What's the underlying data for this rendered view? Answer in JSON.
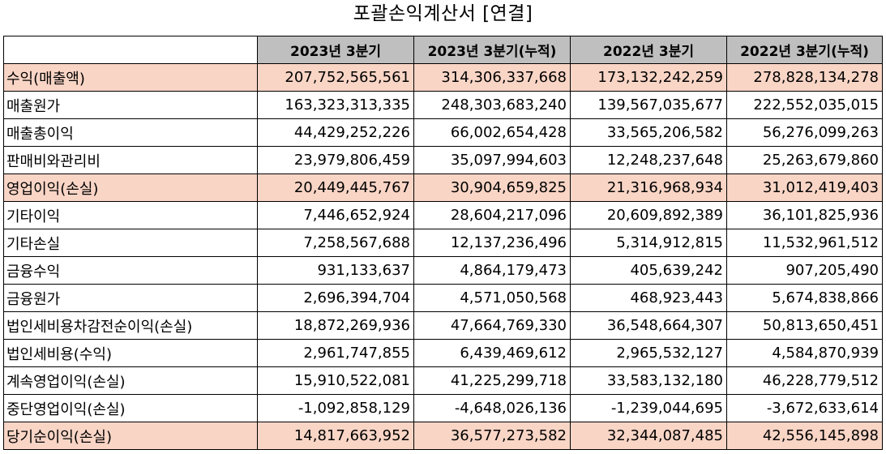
{
  "title": "포괄손익계산서 [연결]",
  "columns": [
    "2023년 3분기",
    "2023년 3분기(누적)",
    "2022년 3분기",
    "2022년 3분기(누적)"
  ],
  "highlight_color": "#f9d5c6",
  "header_color": "#bfbfbf",
  "rows": [
    {
      "label": "수익(매출액)",
      "values": [
        "207,752,565,561",
        "314,306,337,668",
        "173,132,242,259",
        "278,828,134,278"
      ],
      "highlight": true
    },
    {
      "label": "매출원가",
      "values": [
        "163,323,313,335",
        "248,303,683,240",
        "139,567,035,677",
        "222,552,035,015"
      ],
      "highlight": false
    },
    {
      "label": "매출총이익",
      "values": [
        "44,429,252,226",
        "66,002,654,428",
        "33,565,206,582",
        "56,276,099,263"
      ],
      "highlight": false
    },
    {
      "label": "판매비와관리비",
      "values": [
        "23,979,806,459",
        "35,097,994,603",
        "12,248,237,648",
        "25,263,679,860"
      ],
      "highlight": false
    },
    {
      "label": "영업이익(손실)",
      "values": [
        "20,449,445,767",
        "30,904,659,825",
        "21,316,968,934",
        "31,012,419,403"
      ],
      "highlight": true
    },
    {
      "label": "기타이익",
      "values": [
        "7,446,652,924",
        "28,604,217,096",
        "20,609,892,389",
        "36,101,825,936"
      ],
      "highlight": false
    },
    {
      "label": "기타손실",
      "values": [
        "7,258,567,688",
        "12,137,236,496",
        "5,314,912,815",
        "11,532,961,512"
      ],
      "highlight": false
    },
    {
      "label": "금융수익",
      "values": [
        "931,133,637",
        "4,864,179,473",
        "405,639,242",
        "907,205,490"
      ],
      "highlight": false
    },
    {
      "label": "금융원가",
      "values": [
        "2,696,394,704",
        "4,571,050,568",
        "468,923,443",
        "5,674,838,866"
      ],
      "highlight": false
    },
    {
      "label": "법인세비용차감전순이익(손실)",
      "values": [
        "18,872,269,936",
        "47,664,769,330",
        "36,548,664,307",
        "50,813,650,451"
      ],
      "highlight": false
    },
    {
      "label": "법인세비용(수익)",
      "values": [
        "2,961,747,855",
        "6,439,469,612",
        "2,965,532,127",
        "4,584,870,939"
      ],
      "highlight": false
    },
    {
      "label": "계속영업이익(손실)",
      "values": [
        "15,910,522,081",
        "41,225,299,718",
        "33,583,132,180",
        "46,228,779,512"
      ],
      "highlight": false
    },
    {
      "label": "중단영업이익(손실)",
      "values": [
        "-1,092,858,129",
        "-4,648,026,136",
        "-1,239,044,695",
        "-3,672,633,614"
      ],
      "highlight": false
    },
    {
      "label": "당기순이익(손실)",
      "values": [
        "14,817,663,952",
        "36,577,273,582",
        "32,344,087,485",
        "42,556,145,898"
      ],
      "highlight": true
    }
  ]
}
